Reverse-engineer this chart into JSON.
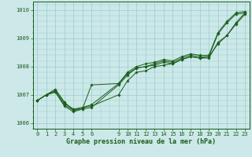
{
  "xlabel": "Graphe pression niveau de la mer (hPa)",
  "background_color": "#cce8e8",
  "grid_color": "#99cccc",
  "line_color": "#1a5c1a",
  "ylim": [
    1005.8,
    1010.3
  ],
  "xlim": [
    -0.5,
    23.5
  ],
  "hours": [
    0,
    1,
    2,
    3,
    4,
    5,
    6,
    9,
    10,
    11,
    12,
    13,
    14,
    15,
    16,
    17,
    18,
    19,
    20,
    21,
    22,
    23
  ],
  "series": [
    [
      1006.8,
      1007.0,
      1007.1,
      1006.65,
      1006.45,
      1006.5,
      1006.55,
      1007.35,
      1007.7,
      1007.95,
      1008.0,
      1008.1,
      1008.2,
      1008.15,
      1008.3,
      1008.4,
      1008.35,
      1008.35,
      1009.15,
      1009.55,
      1009.85,
      1009.9
    ],
    [
      1006.8,
      1007.0,
      1007.15,
      1006.7,
      1006.5,
      1006.55,
      1006.6,
      1007.0,
      1007.5,
      1007.8,
      1007.85,
      1008.0,
      1008.05,
      1008.1,
      1008.25,
      1008.35,
      1008.3,
      1008.3,
      1008.85,
      1009.1,
      1009.55,
      1009.9
    ],
    [
      1006.8,
      1007.0,
      1007.2,
      1006.75,
      1006.45,
      1006.55,
      1006.65,
      1007.4,
      1007.8,
      1008.0,
      1008.1,
      1008.15,
      1008.25,
      1008.2,
      1008.35,
      1008.45,
      1008.4,
      1008.4,
      1009.2,
      1009.6,
      1009.9,
      1009.95
    ],
    [
      1006.8,
      1007.0,
      1007.1,
      1006.6,
      1006.4,
      1006.5,
      1007.35,
      1007.4,
      1007.75,
      1007.95,
      1008.0,
      1008.05,
      1008.15,
      1008.1,
      1008.25,
      1008.35,
      1008.3,
      1008.35,
      1008.8,
      1009.1,
      1009.5,
      1009.85
    ]
  ],
  "yticks": [
    1006,
    1007,
    1008,
    1009,
    1010
  ],
  "xticks": [
    0,
    1,
    2,
    3,
    4,
    5,
    6,
    9,
    10,
    11,
    12,
    13,
    14,
    15,
    16,
    17,
    18,
    19,
    20,
    21,
    22,
    23
  ],
  "tick_fontsize": 5,
  "xlabel_fontsize": 6,
  "linewidth": 0.7,
  "markersize": 1.8
}
